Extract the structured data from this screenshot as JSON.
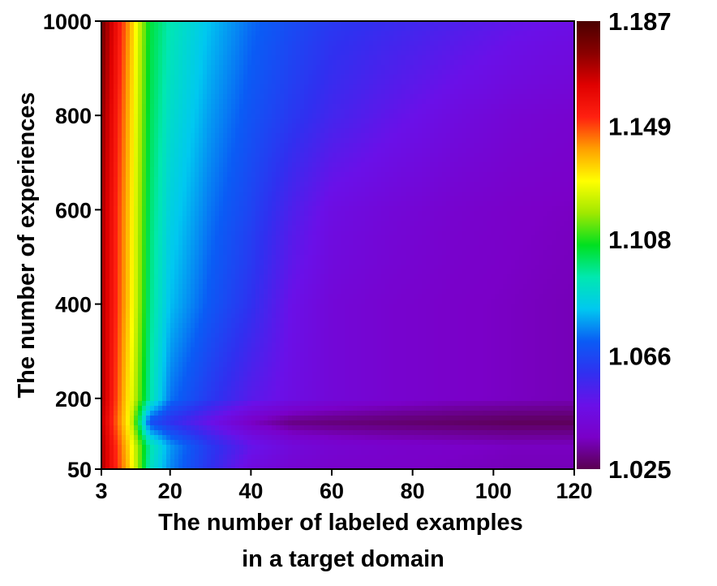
{
  "chart_data": {
    "type": "heatmap",
    "title": "",
    "xlabel_lines": [
      "The number of labeled examples",
      "in a target domain"
    ],
    "ylabel": "The number of experiences",
    "xlim": [
      3,
      120
    ],
    "ylim": [
      50,
      1000
    ],
    "x_ticks": [
      3,
      20,
      40,
      60,
      80,
      100,
      120
    ],
    "y_ticks": [
      50,
      200,
      400,
      600,
      800,
      1000
    ],
    "colorbar": {
      "min": 1.025,
      "max": 1.187,
      "tick_values": [
        1.187,
        1.149,
        1.108,
        1.066,
        1.025
      ],
      "tick_labels": [
        "1.187",
        "1.149",
        "1.108",
        "1.066",
        "1.025"
      ],
      "colors": [
        "#5a0050",
        "#7a00c8",
        "#6a10e8",
        "#3030f0",
        "#0a5cf5",
        "#00c8f0",
        "#00e8b0",
        "#00e020",
        "#a0e800",
        "#ffff00",
        "#ffa000",
        "#ff2010",
        "#e00000",
        "#8a0000",
        "#4a0000"
      ]
    },
    "x": [
      3,
      10,
      15,
      20,
      30,
      40,
      50,
      60,
      75,
      90,
      105,
      120
    ],
    "y": [
      50,
      100,
      150,
      200,
      400,
      600,
      800,
      1000
    ],
    "z": [
      [
        1.171,
        1.135,
        1.092,
        1.076,
        1.06,
        1.044,
        1.04,
        1.038,
        1.037,
        1.036,
        1.035,
        1.035
      ],
      [
        1.171,
        1.133,
        1.095,
        1.078,
        1.062,
        1.05,
        1.043,
        1.04,
        1.038,
        1.037,
        1.036,
        1.036
      ],
      [
        1.168,
        1.128,
        1.068,
        1.06,
        1.048,
        1.036,
        1.03,
        1.029,
        1.028,
        1.027,
        1.026,
        1.026
      ],
      [
        1.171,
        1.13,
        1.095,
        1.074,
        1.062,
        1.052,
        1.046,
        1.042,
        1.039,
        1.037,
        1.036,
        1.035
      ],
      [
        1.171,
        1.134,
        1.098,
        1.082,
        1.07,
        1.06,
        1.048,
        1.042,
        1.039,
        1.037,
        1.036,
        1.035
      ],
      [
        1.172,
        1.135,
        1.1,
        1.086,
        1.074,
        1.065,
        1.054,
        1.046,
        1.042,
        1.039,
        1.037,
        1.036
      ],
      [
        1.175,
        1.137,
        1.102,
        1.09,
        1.078,
        1.069,
        1.062,
        1.056,
        1.05,
        1.045,
        1.041,
        1.039
      ],
      [
        1.18,
        1.14,
        1.104,
        1.094,
        1.082,
        1.073,
        1.067,
        1.062,
        1.058,
        1.054,
        1.05,
        1.047
      ]
    ]
  }
}
